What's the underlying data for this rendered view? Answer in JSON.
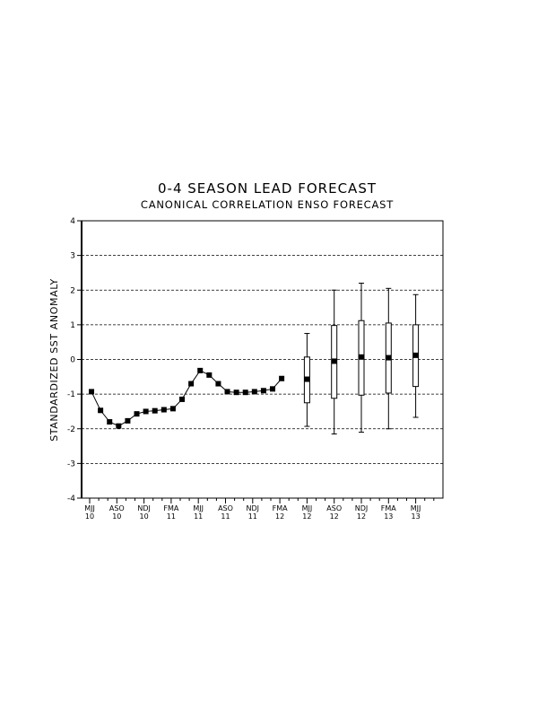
{
  "chart_data": {
    "type": "line",
    "title": "0-4 SEASON LEAD FORECAST",
    "subtitle": "CANONICAL CORRELATION ENSO FORECAST",
    "ylabel": "STANDARDIZED SST ANOMALY",
    "xlabel": "",
    "ylim": [
      -4,
      4
    ],
    "yticks": [
      -4,
      -3,
      -2,
      -1,
      0,
      1,
      2,
      3,
      4
    ],
    "ytick_labels": [
      "-4",
      "-3",
      "-2",
      "-1",
      "0",
      "1",
      "2",
      "3",
      "4"
    ],
    "grid": "horizontal dashed at each integer",
    "xtick_labels": [
      {
        "season": "MJJ",
        "year": "10"
      },
      {
        "season": "ASO",
        "year": "10"
      },
      {
        "season": "NDJ",
        "year": "10"
      },
      {
        "season": "FMA",
        "year": "11"
      },
      {
        "season": "MJJ",
        "year": "11"
      },
      {
        "season": "ASO",
        "year": "11"
      },
      {
        "season": "NDJ",
        "year": "11"
      },
      {
        "season": "FMA",
        "year": "12"
      },
      {
        "season": "MJJ",
        "year": "12"
      },
      {
        "season": "ASO",
        "year": "12"
      },
      {
        "season": "NDJ",
        "year": "12"
      },
      {
        "season": "FMA",
        "year": "13"
      },
      {
        "season": "MJJ",
        "year": "13"
      }
    ],
    "observed": [
      -0.93,
      -1.47,
      -1.8,
      -1.92,
      -1.77,
      -1.57,
      -1.5,
      -1.48,
      -1.45,
      -1.42,
      -1.15,
      -0.7,
      -0.32,
      -0.45,
      -0.7,
      -0.93,
      -0.95,
      -0.95,
      -0.93,
      -0.9,
      -0.85,
      -0.55
    ],
    "forecast": [
      {
        "season": "MJJ 12",
        "value": -0.57,
        "box_low": -1.25,
        "box_high": 0.07,
        "whisker_low": -1.93,
        "whisker_high": 0.75
      },
      {
        "season": "ASO 12",
        "value": -0.05,
        "box_low": -1.12,
        "box_high": 0.98,
        "whisker_low": -2.15,
        "whisker_high": 2.0
      },
      {
        "season": "NDJ 12",
        "value": 0.07,
        "box_low": -1.03,
        "box_high": 1.12,
        "whisker_low": -2.1,
        "whisker_high": 2.2
      },
      {
        "season": "FMA 13",
        "value": 0.05,
        "box_low": -0.97,
        "box_high": 1.05,
        "whisker_low": -2.0,
        "whisker_high": 2.05
      },
      {
        "season": "MJJ 13",
        "value": 0.12,
        "box_low": -0.78,
        "box_high": 1.0,
        "whisker_low": -1.67,
        "whisker_high": 1.87
      }
    ]
  }
}
